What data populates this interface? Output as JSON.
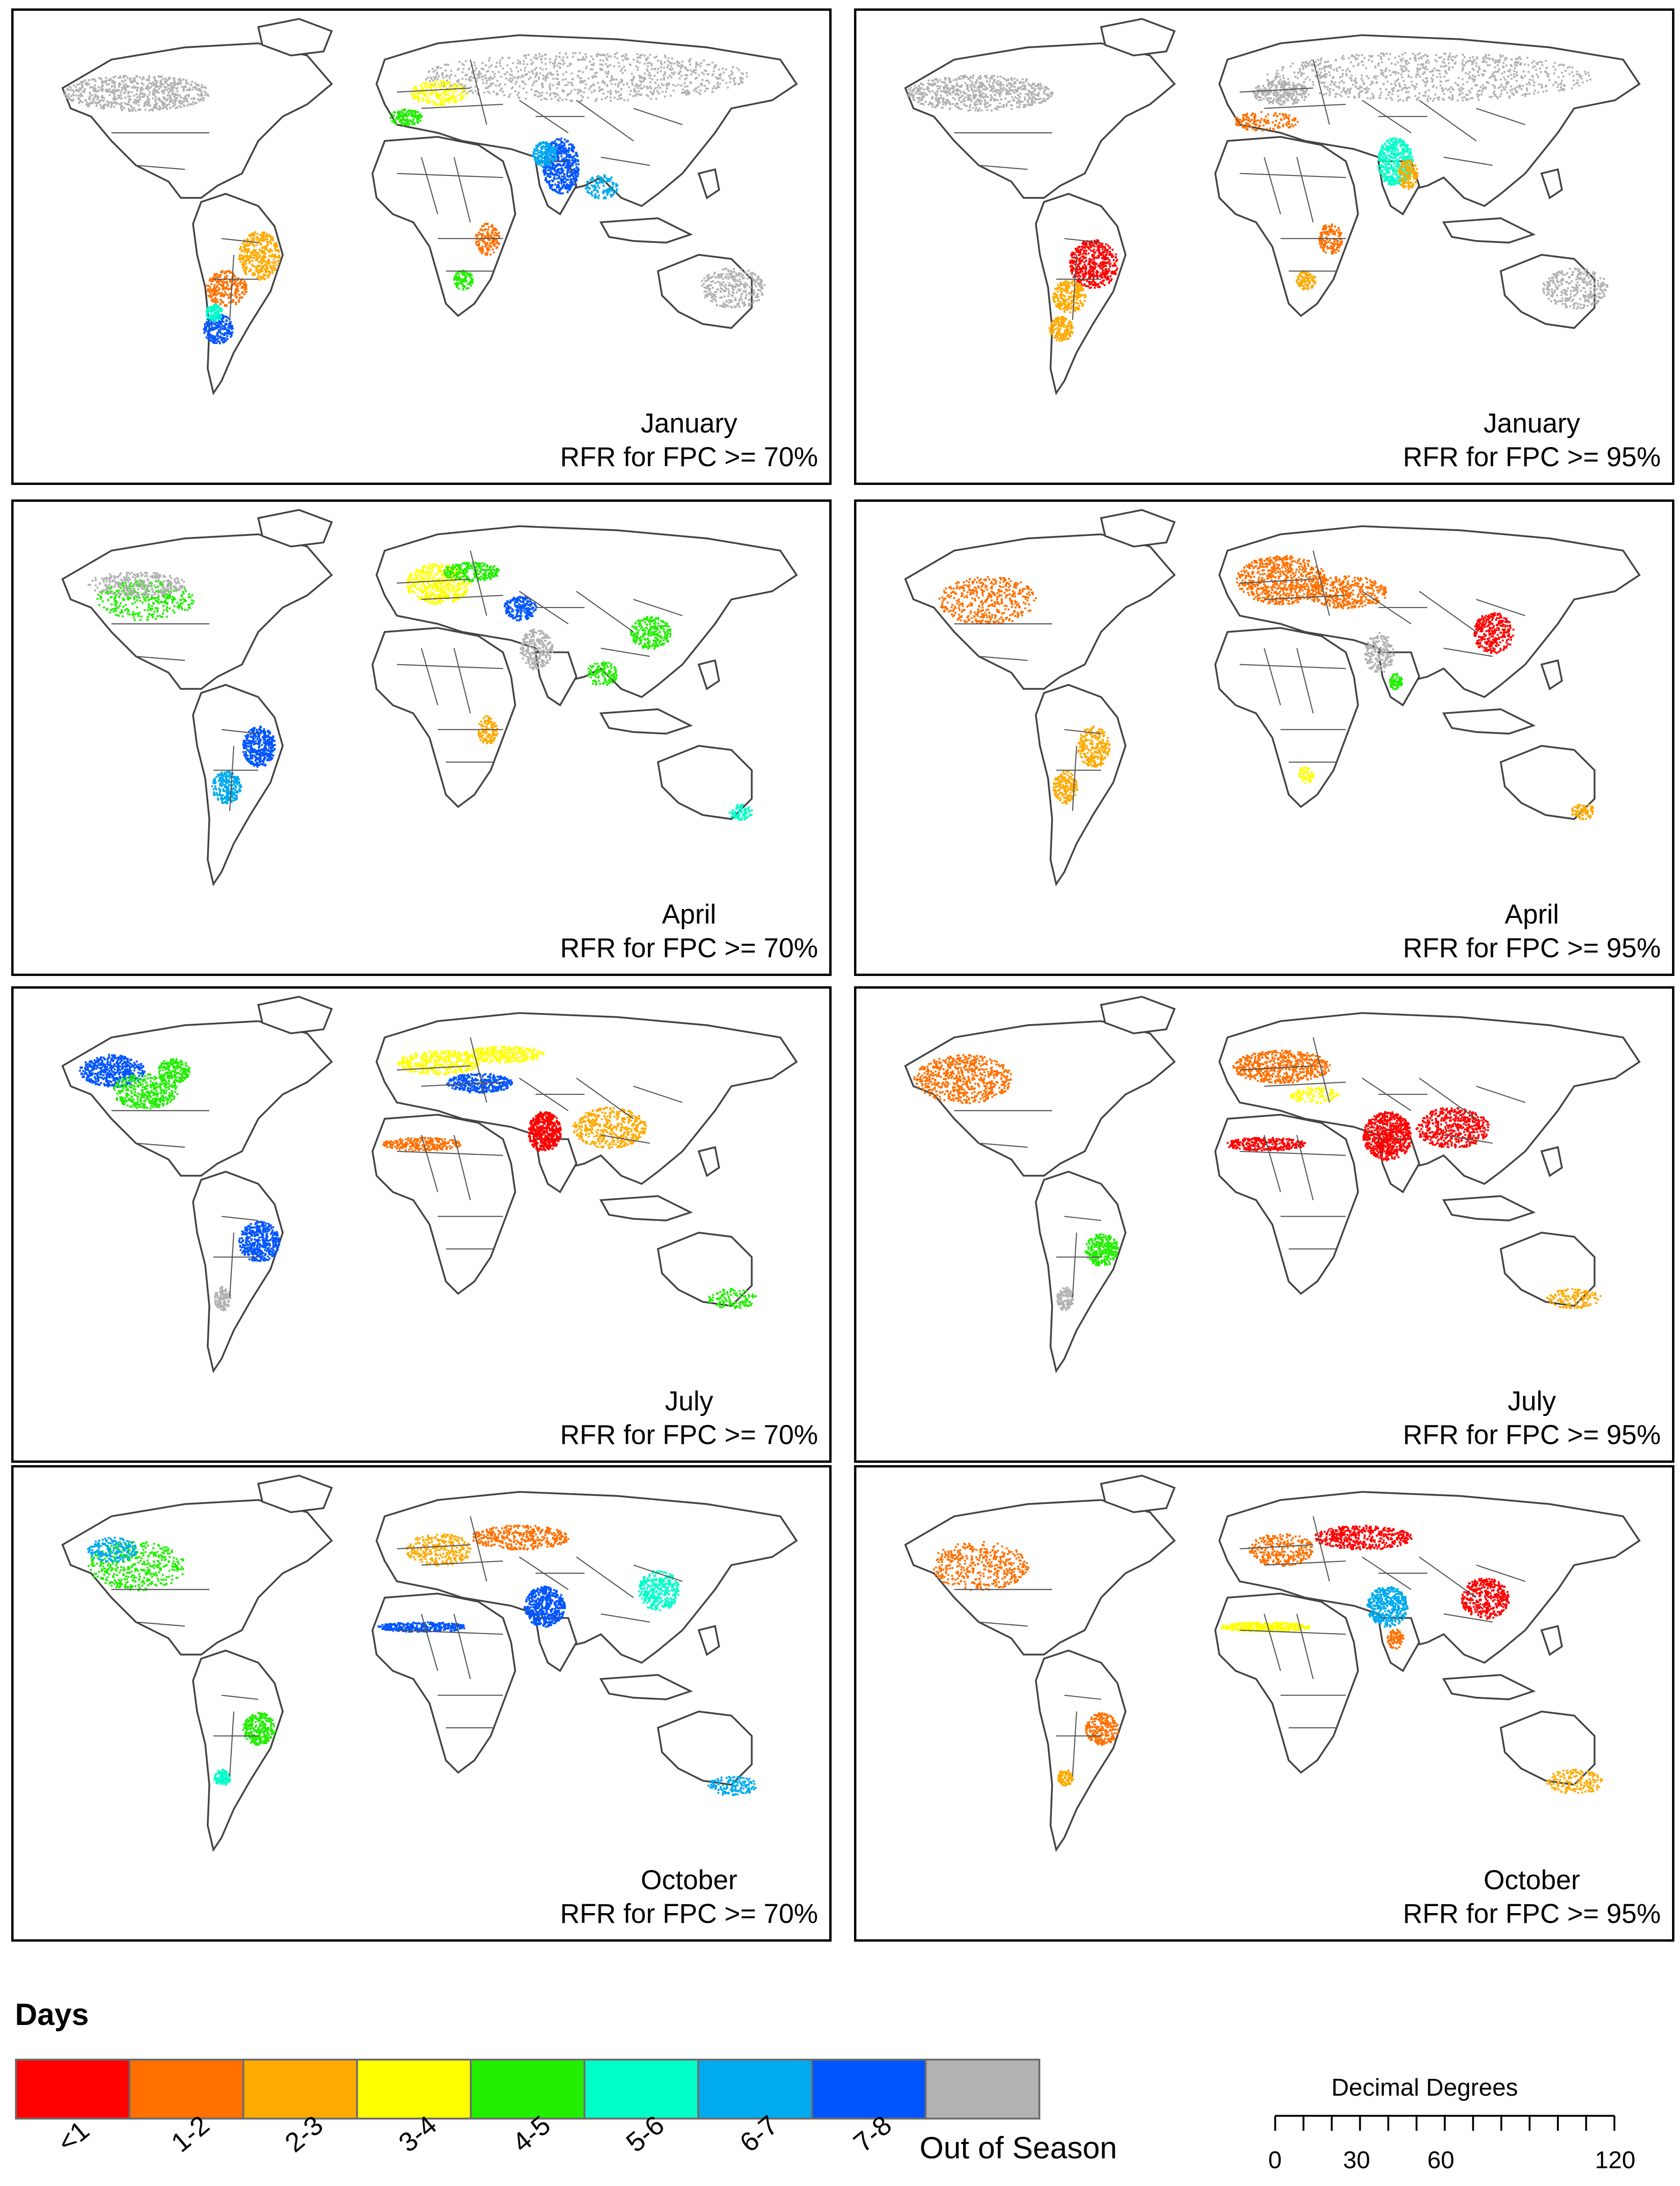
{
  "panels": [
    {
      "month": "January",
      "subtitle": "RFR for FPC >= 70%"
    },
    {
      "month": "January",
      "subtitle": "RFR for FPC >= 95%"
    },
    {
      "month": "April",
      "subtitle": "RFR for FPC >= 70%"
    },
    {
      "month": "April",
      "subtitle": "RFR for FPC >= 95%"
    },
    {
      "month": "July",
      "subtitle": "RFR for FPC >= 70%"
    },
    {
      "month": "July",
      "subtitle": "RFR for FPC >= 95%"
    },
    {
      "month": "October",
      "subtitle": "RFR for FPC >= 70%"
    },
    {
      "month": "October",
      "subtitle": "RFR for FPC >= 95%"
    }
  ],
  "legend": {
    "title": "Days",
    "classes": [
      {
        "label": "<1",
        "color": "#ff0000"
      },
      {
        "label": "1-2",
        "color": "#ff7000"
      },
      {
        "label": "2-3",
        "color": "#ffaa00"
      },
      {
        "label": "3-4",
        "color": "#ffff00"
      },
      {
        "label": "4-5",
        "color": "#22ee00"
      },
      {
        "label": "5-6",
        "color": "#00ffc8"
      },
      {
        "label": "6-7",
        "color": "#00aaee"
      },
      {
        "label": "7-8",
        "color": "#0055ff"
      }
    ],
    "out_of_season": {
      "label": "Out of Season",
      "color": "#b2b2b2"
    }
  },
  "scale_bar": {
    "title": "Decimal Degrees",
    "ticks": [
      "0",
      "30",
      "60",
      "120"
    ]
  },
  "colors": {
    "land": "#ffffff",
    "border": "#555555",
    "coast": "#444444"
  }
}
